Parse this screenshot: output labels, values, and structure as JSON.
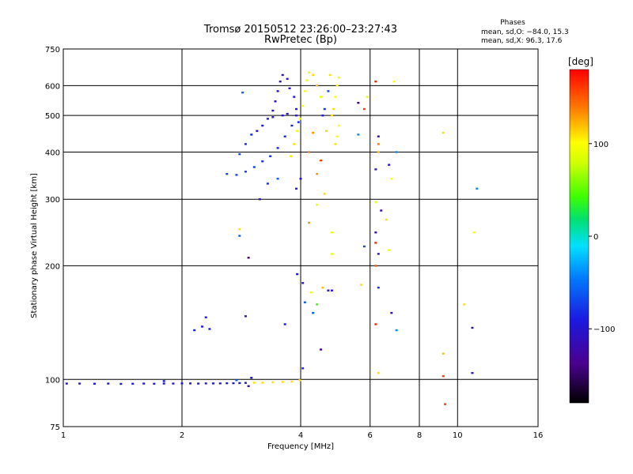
{
  "title": "Tromsø 20150512 23:26:00–23:27:43",
  "subtitle": "RwPretec (Bp)",
  "phases_box": {
    "heading": "Phases",
    "line1": "mean, sd,O: −84.0, 15.3",
    "line2": "mean, sd,X:  96.3, 17.6"
  },
  "colorbar": {
    "label": "[deg]",
    "range": [
      -180,
      180
    ],
    "ticks": [
      {
        "value": 100,
        "label": "100"
      },
      {
        "value": 0,
        "label": "0"
      },
      {
        "value": -100,
        "label": "−100"
      }
    ]
  },
  "chart_data": {
    "type": "scatter",
    "title": "Tromsø 20150512 23:26:00–23:27:43",
    "subtitle": "RwPretec (Bp)",
    "xlabel": "Frequency [MHz]",
    "ylabel": "Stationary phase Virtual Height [km]",
    "xscale": "log",
    "yscale": "log",
    "xlim": [
      1,
      16
    ],
    "ylim": [
      75,
      750
    ],
    "xticks": [
      {
        "value": 1,
        "label": "1"
      },
      {
        "value": 2,
        "label": "2"
      },
      {
        "value": 4,
        "label": "4"
      },
      {
        "value": 6,
        "label": "6"
      },
      {
        "value": 8,
        "label": "8"
      },
      {
        "value": 10,
        "label": "10"
      },
      {
        "value": 16,
        "label": "16"
      }
    ],
    "yticks": [
      {
        "value": 75,
        "label": "75"
      },
      {
        "value": 100,
        "label": "100"
      },
      {
        "value": 200,
        "label": "200"
      },
      {
        "value": 300,
        "label": "300"
      },
      {
        "value": 400,
        "label": "400"
      },
      {
        "value": 500,
        "label": "500"
      },
      {
        "value": 600,
        "label": "600"
      },
      {
        "value": 750,
        "label": "750"
      }
    ],
    "grid": true,
    "color_scale": "phase, degrees, -180 to 180",
    "points": [
      {
        "f": 1.02,
        "h": 97.5,
        "p": -95
      },
      {
        "f": 1.1,
        "h": 97.5,
        "p": -95
      },
      {
        "f": 1.2,
        "h": 97.4,
        "p": -95
      },
      {
        "f": 1.3,
        "h": 97.5,
        "p": -95
      },
      {
        "f": 1.4,
        "h": 97.3,
        "p": -95
      },
      {
        "f": 1.5,
        "h": 97.4,
        "p": -95
      },
      {
        "f": 1.6,
        "h": 97.5,
        "p": -95
      },
      {
        "f": 1.7,
        "h": 97.4,
        "p": -95
      },
      {
        "f": 1.8,
        "h": 97.5,
        "p": -95
      },
      {
        "f": 1.9,
        "h": 97.5,
        "p": -95
      },
      {
        "f": 2.0,
        "h": 97.6,
        "p": -95
      },
      {
        "f": 2.1,
        "h": 97.6,
        "p": -95
      },
      {
        "f": 2.2,
        "h": 97.5,
        "p": -95
      },
      {
        "f": 2.3,
        "h": 97.6,
        "p": -95
      },
      {
        "f": 2.4,
        "h": 97.6,
        "p": -95
      },
      {
        "f": 2.5,
        "h": 97.6,
        "p": -95
      },
      {
        "f": 2.6,
        "h": 97.7,
        "p": -95
      },
      {
        "f": 2.7,
        "h": 97.7,
        "p": -95
      },
      {
        "f": 2.8,
        "h": 97.8,
        "p": -95
      },
      {
        "f": 2.9,
        "h": 97.9,
        "p": -95
      },
      {
        "f": 3.0,
        "h": 101.0,
        "p": -100
      },
      {
        "f": 3.05,
        "h": 98.0,
        "p": 110
      },
      {
        "f": 3.2,
        "h": 98.0,
        "p": 110
      },
      {
        "f": 3.4,
        "h": 98.3,
        "p": 110
      },
      {
        "f": 3.6,
        "h": 98.5,
        "p": 110
      },
      {
        "f": 3.8,
        "h": 98.7,
        "p": 110
      },
      {
        "f": 3.98,
        "h": 99.5,
        "p": 110
      },
      {
        "f": 1.8,
        "h": 99.0,
        "p": -90
      },
      {
        "f": 2.75,
        "h": 99.5,
        "p": -60
      },
      {
        "f": 2.95,
        "h": 96.0,
        "p": -120
      },
      {
        "f": 2.15,
        "h": 135.0,
        "p": -90
      },
      {
        "f": 2.25,
        "h": 138.0,
        "p": -90
      },
      {
        "f": 2.3,
        "h": 146.0,
        "p": -90
      },
      {
        "f": 2.35,
        "h": 136.0,
        "p": -90
      },
      {
        "f": 2.9,
        "h": 147.0,
        "p": -100
      },
      {
        "f": 3.65,
        "h": 140.0,
        "p": -90
      },
      {
        "f": 3.92,
        "h": 190.0,
        "p": -100
      },
      {
        "f": 4.05,
        "h": 180.0,
        "p": -100
      },
      {
        "f": 4.05,
        "h": 107.0,
        "p": -80
      },
      {
        "f": 4.1,
        "h": 160.0,
        "p": -60
      },
      {
        "f": 4.25,
        "h": 170.0,
        "p": 90
      },
      {
        "f": 4.4,
        "h": 158.0,
        "p": 40
      },
      {
        "f": 4.55,
        "h": 175.0,
        "p": 120
      },
      {
        "f": 4.7,
        "h": 172.0,
        "p": -110
      },
      {
        "f": 4.8,
        "h": 172.0,
        "p": -100
      },
      {
        "f": 4.8,
        "h": 215.0,
        "p": 90
      },
      {
        "f": 4.5,
        "h": 120.0,
        "p": -130
      },
      {
        "f": 4.3,
        "h": 150.0,
        "p": -60
      },
      {
        "f": 5.7,
        "h": 178.0,
        "p": 110
      },
      {
        "f": 6.2,
        "h": 200.0,
        "p": 150
      },
      {
        "f": 6.3,
        "h": 175.0,
        "p": -80
      },
      {
        "f": 6.2,
        "h": 140.0,
        "p": 170
      },
      {
        "f": 6.3,
        "h": 104.0,
        "p": 110
      },
      {
        "f": 6.8,
        "h": 150.0,
        "p": -120
      },
      {
        "f": 7.0,
        "h": 135.0,
        "p": -40
      },
      {
        "f": 9.2,
        "h": 117.0,
        "p": 120
      },
      {
        "f": 9.2,
        "h": 102.0,
        "p": 160
      },
      {
        "f": 9.3,
        "h": 86.0,
        "p": 160
      },
      {
        "f": 10.4,
        "h": 158.0,
        "p": 110
      },
      {
        "f": 10.9,
        "h": 137.0,
        "p": -110
      },
      {
        "f": 10.9,
        "h": 104.0,
        "p": -110
      },
      {
        "f": 2.6,
        "h": 350.0,
        "p": -70
      },
      {
        "f": 2.75,
        "h": 348.0,
        "p": -70
      },
      {
        "f": 2.9,
        "h": 355.0,
        "p": -75
      },
      {
        "f": 3.05,
        "h": 365.0,
        "p": -75
      },
      {
        "f": 3.2,
        "h": 378.0,
        "p": -80
      },
      {
        "f": 3.35,
        "h": 390.0,
        "p": -80
      },
      {
        "f": 3.5,
        "h": 410.0,
        "p": -85
      },
      {
        "f": 3.65,
        "h": 440.0,
        "p": -85
      },
      {
        "f": 3.8,
        "h": 470.0,
        "p": -90
      },
      {
        "f": 3.9,
        "h": 500.0,
        "p": -90
      },
      {
        "f": 2.8,
        "h": 395.0,
        "p": -70
      },
      {
        "f": 2.9,
        "h": 420.0,
        "p": -80
      },
      {
        "f": 3.0,
        "h": 445.0,
        "p": -85
      },
      {
        "f": 3.1,
        "h": 455.0,
        "p": -95
      },
      {
        "f": 3.2,
        "h": 470.0,
        "p": -95
      },
      {
        "f": 3.3,
        "h": 490.0,
        "p": -95
      },
      {
        "f": 3.4,
        "h": 515.0,
        "p": -100
      },
      {
        "f": 3.45,
        "h": 545.0,
        "p": -100
      },
      {
        "f": 3.5,
        "h": 580.0,
        "p": -105
      },
      {
        "f": 3.55,
        "h": 615.0,
        "p": -110
      },
      {
        "f": 3.6,
        "h": 640.0,
        "p": -110
      },
      {
        "f": 3.7,
        "h": 625.0,
        "p": -105
      },
      {
        "f": 3.75,
        "h": 590.0,
        "p": -100
      },
      {
        "f": 3.85,
        "h": 560.0,
        "p": -95
      },
      {
        "f": 3.9,
        "h": 520.0,
        "p": -95
      },
      {
        "f": 3.95,
        "h": 480.0,
        "p": -80
      },
      {
        "f": 3.6,
        "h": 500.0,
        "p": -100
      },
      {
        "f": 3.7,
        "h": 505.0,
        "p": -100
      },
      {
        "f": 3.4,
        "h": 495.0,
        "p": -105
      },
      {
        "f": 2.85,
        "h": 575.0,
        "p": -60
      },
      {
        "f": 3.3,
        "h": 330.0,
        "p": -80
      },
      {
        "f": 3.5,
        "h": 340.0,
        "p": -60
      },
      {
        "f": 2.8,
        "h": 250.0,
        "p": 110
      },
      {
        "f": 2.8,
        "h": 240.0,
        "p": -60
      },
      {
        "f": 2.95,
        "h": 210.0,
        "p": -140
      },
      {
        "f": 3.15,
        "h": 300.0,
        "p": -100
      },
      {
        "f": 3.9,
        "h": 320.0,
        "p": -90
      },
      {
        "f": 3.78,
        "h": 390.0,
        "p": 110
      },
      {
        "f": 3.85,
        "h": 420.0,
        "p": 110
      },
      {
        "f": 3.92,
        "h": 455.0,
        "p": 105
      },
      {
        "f": 3.98,
        "h": 490.0,
        "p": 100
      },
      {
        "f": 4.05,
        "h": 530.0,
        "p": 100
      },
      {
        "f": 4.1,
        "h": 580.0,
        "p": 100
      },
      {
        "f": 4.15,
        "h": 620.0,
        "p": 95
      },
      {
        "f": 4.2,
        "h": 650.0,
        "p": 90
      },
      {
        "f": 4.3,
        "h": 640.0,
        "p": 110
      },
      {
        "f": 4.4,
        "h": 600.0,
        "p": 120
      },
      {
        "f": 4.5,
        "h": 560.0,
        "p": 90
      },
      {
        "f": 4.6,
        "h": 520.0,
        "p": -80
      },
      {
        "f": 4.7,
        "h": 580.0,
        "p": -70
      },
      {
        "f": 4.75,
        "h": 640.0,
        "p": 110
      },
      {
        "f": 4.8,
        "h": 500.0,
        "p": 110
      },
      {
        "f": 4.85,
        "h": 520.0,
        "p": 110
      },
      {
        "f": 4.9,
        "h": 560.0,
        "p": 100
      },
      {
        "f": 4.95,
        "h": 600.0,
        "p": 100
      },
      {
        "f": 5.0,
        "h": 630.0,
        "p": 95
      },
      {
        "f": 5.0,
        "h": 470.0,
        "p": 100
      },
      {
        "f": 4.95,
        "h": 440.0,
        "p": 100
      },
      {
        "f": 4.9,
        "h": 420.0,
        "p": 110
      },
      {
        "f": 4.3,
        "h": 450.0,
        "p": 130
      },
      {
        "f": 4.2,
        "h": 400.0,
        "p": 140
      },
      {
        "f": 4.5,
        "h": 380.0,
        "p": 160
      },
      {
        "f": 4.4,
        "h": 350.0,
        "p": 130
      },
      {
        "f": 4.0,
        "h": 340.0,
        "p": -100
      },
      {
        "f": 4.2,
        "h": 260.0,
        "p": 130
      },
      {
        "f": 4.4,
        "h": 290.0,
        "p": 90
      },
      {
        "f": 4.6,
        "h": 310.0,
        "p": 110
      },
      {
        "f": 4.8,
        "h": 245.0,
        "p": 90
      },
      {
        "f": 4.65,
        "h": 455.0,
        "p": 110
      },
      {
        "f": 5.8,
        "h": 520.0,
        "p": 160
      },
      {
        "f": 5.9,
        "h": 560.0,
        "p": 90
      },
      {
        "f": 6.2,
        "h": 615.0,
        "p": 170
      },
      {
        "f": 6.9,
        "h": 615.0,
        "p": 100
      },
      {
        "f": 6.3,
        "h": 440.0,
        "p": -120
      },
      {
        "f": 6.3,
        "h": 420.0,
        "p": 140
      },
      {
        "f": 6.3,
        "h": 400.0,
        "p": 120
      },
      {
        "f": 6.2,
        "h": 360.0,
        "p": -100
      },
      {
        "f": 6.2,
        "h": 295.0,
        "p": 90
      },
      {
        "f": 6.4,
        "h": 280.0,
        "p": -120
      },
      {
        "f": 6.6,
        "h": 265.0,
        "p": 110
      },
      {
        "f": 6.2,
        "h": 245.0,
        "p": -120
      },
      {
        "f": 6.2,
        "h": 230.0,
        "p": 170
      },
      {
        "f": 6.3,
        "h": 215.0,
        "p": -100
      },
      {
        "f": 5.8,
        "h": 225.0,
        "p": -70
      },
      {
        "f": 6.7,
        "h": 220.0,
        "p": 90
      },
      {
        "f": 6.8,
        "h": 340.0,
        "p": 100
      },
      {
        "f": 7.0,
        "h": 400.0,
        "p": -40
      },
      {
        "f": 6.7,
        "h": 370.0,
        "p": -110
      },
      {
        "f": 5.6,
        "h": 445.0,
        "p": -40
      },
      {
        "f": 9.2,
        "h": 450.0,
        "p": 110
      },
      {
        "f": 11.2,
        "h": 320.0,
        "p": -40
      },
      {
        "f": 11.0,
        "h": 245.0,
        "p": 100
      },
      {
        "f": 5.6,
        "h": 540.0,
        "p": -140
      },
      {
        "f": 4.55,
        "h": 500.0,
        "p": -90
      }
    ]
  }
}
